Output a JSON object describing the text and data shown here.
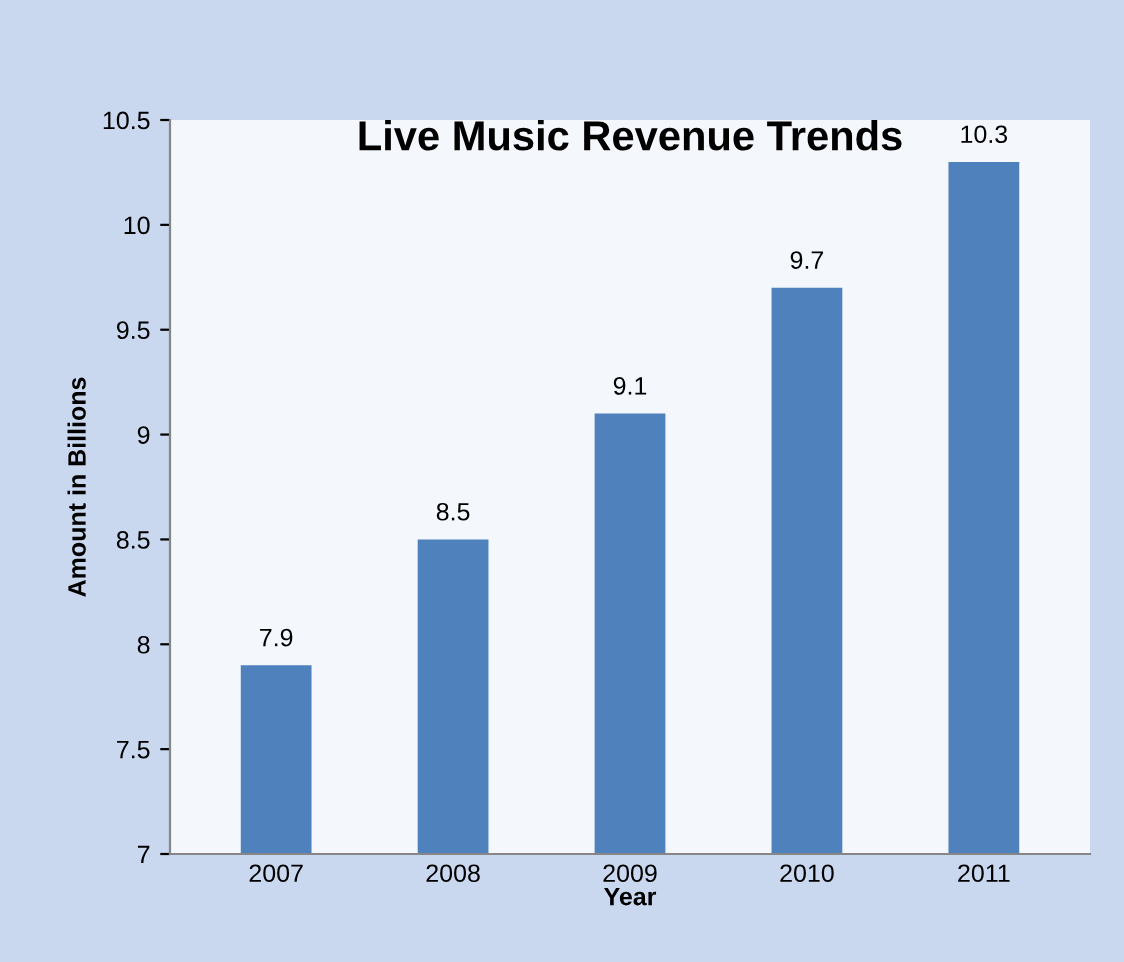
{
  "chart_data": {
    "type": "bar",
    "title": "Live Music Revenue Trends",
    "xlabel": "Year",
    "ylabel": "Amount in Billions",
    "categories": [
      "2007",
      "2008",
      "2009",
      "2010",
      "2011"
    ],
    "values": [
      7.9,
      8.5,
      9.1,
      9.7,
      10.3
    ],
    "color": "#4f81bd",
    "ylim": [
      7,
      10.5
    ],
    "yticks": [
      7,
      7.5,
      8,
      8.5,
      9,
      9.5,
      10,
      10.5
    ],
    "grid": false,
    "data_labels": true
  }
}
